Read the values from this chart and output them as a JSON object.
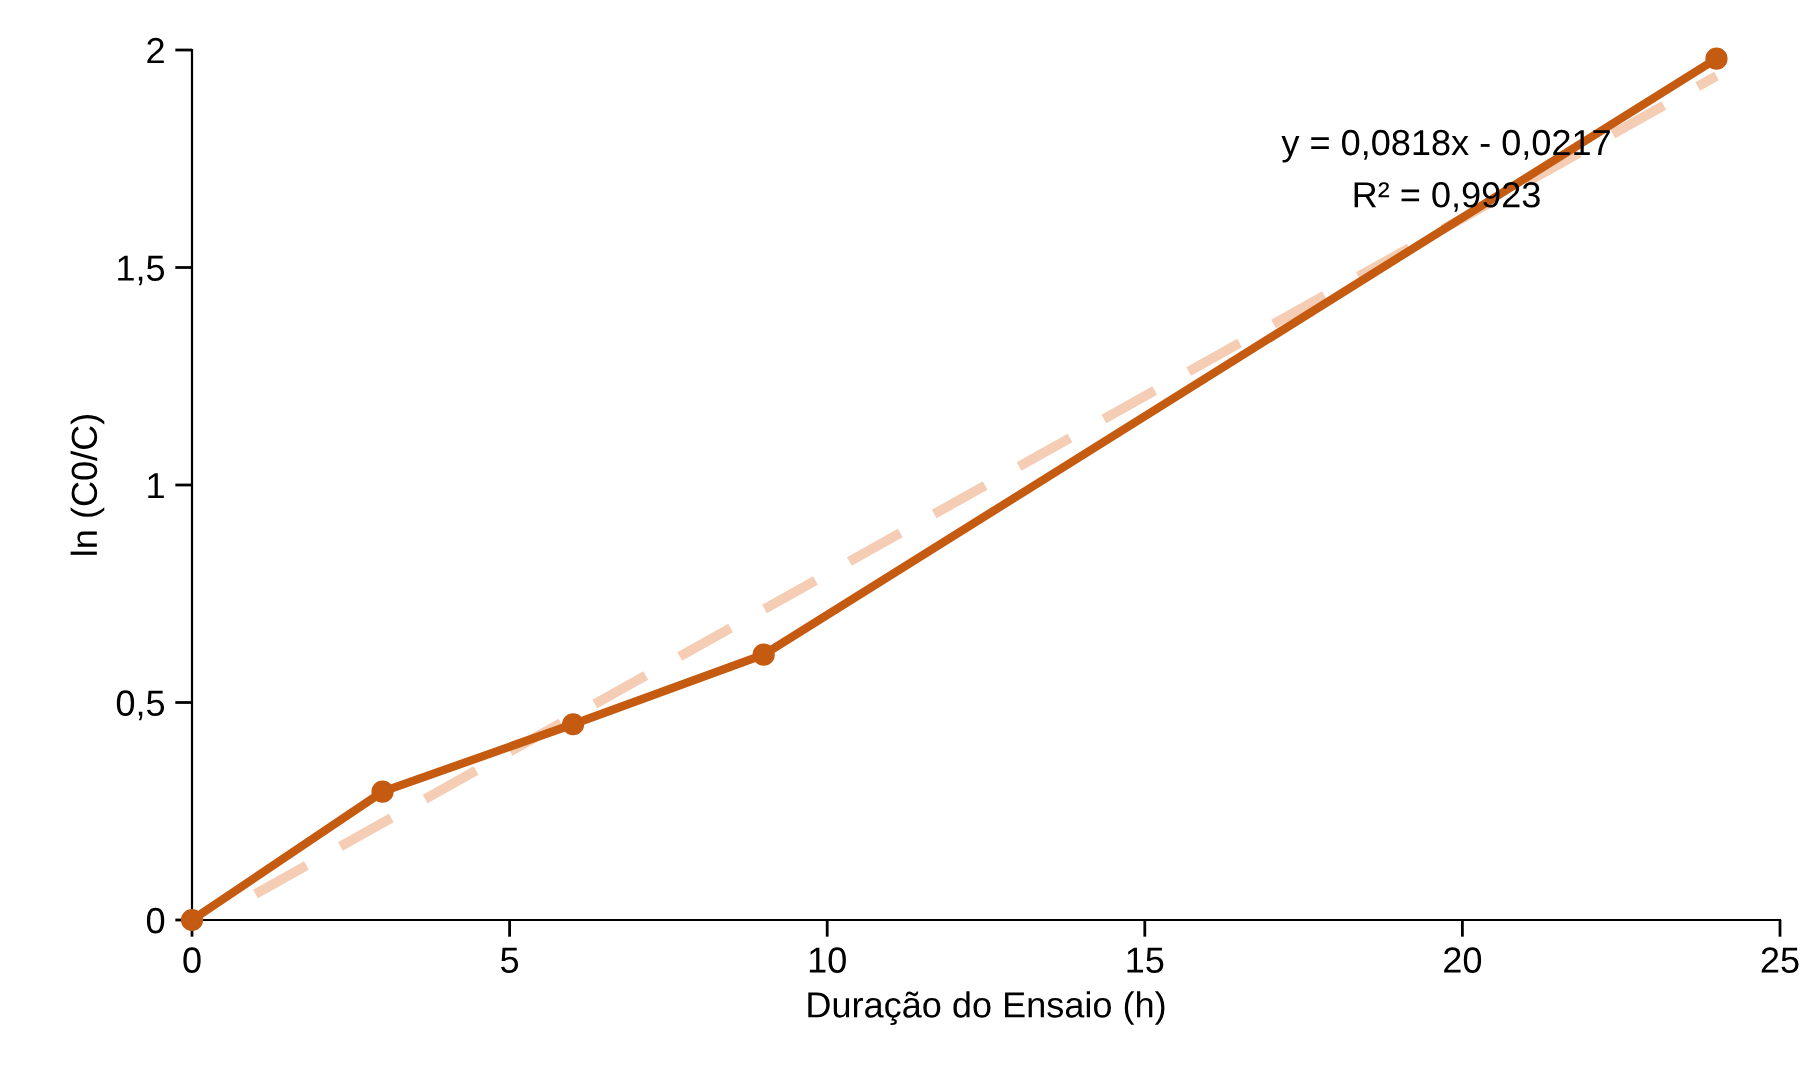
{
  "chart_data": {
    "type": "line",
    "xlabel": "Duração do Ensaio (h)",
    "ylabel": "ln (C0/C)",
    "xlim": [
      0,
      25
    ],
    "xticks": [
      0,
      5,
      10,
      15,
      20,
      25
    ],
    "ylim": [
      0,
      2
    ],
    "yticks": [
      0,
      {
        "value": 0.5,
        "label": "0,5"
      },
      1,
      {
        "value": 1.5,
        "label": "1,5"
      },
      2
    ],
    "grid": false,
    "legend": false,
    "series": [
      {
        "color": "#f4cdb4",
        "line_style": "dashed",
        "marker": "none",
        "x": [
          1,
          24
        ],
        "values": [
          0.06,
          1.94
        ]
      },
      {
        "color": "#c55a11",
        "line_style": "solid",
        "marker": "circle",
        "x": [
          0,
          3,
          6,
          9,
          24
        ],
        "values": [
          0,
          0.295,
          0.45,
          0.61,
          1.98
        ]
      }
    ],
    "annotations": [
      "y = 0,0818x - 0,0217",
      "R² = 0,9923"
    ]
  }
}
